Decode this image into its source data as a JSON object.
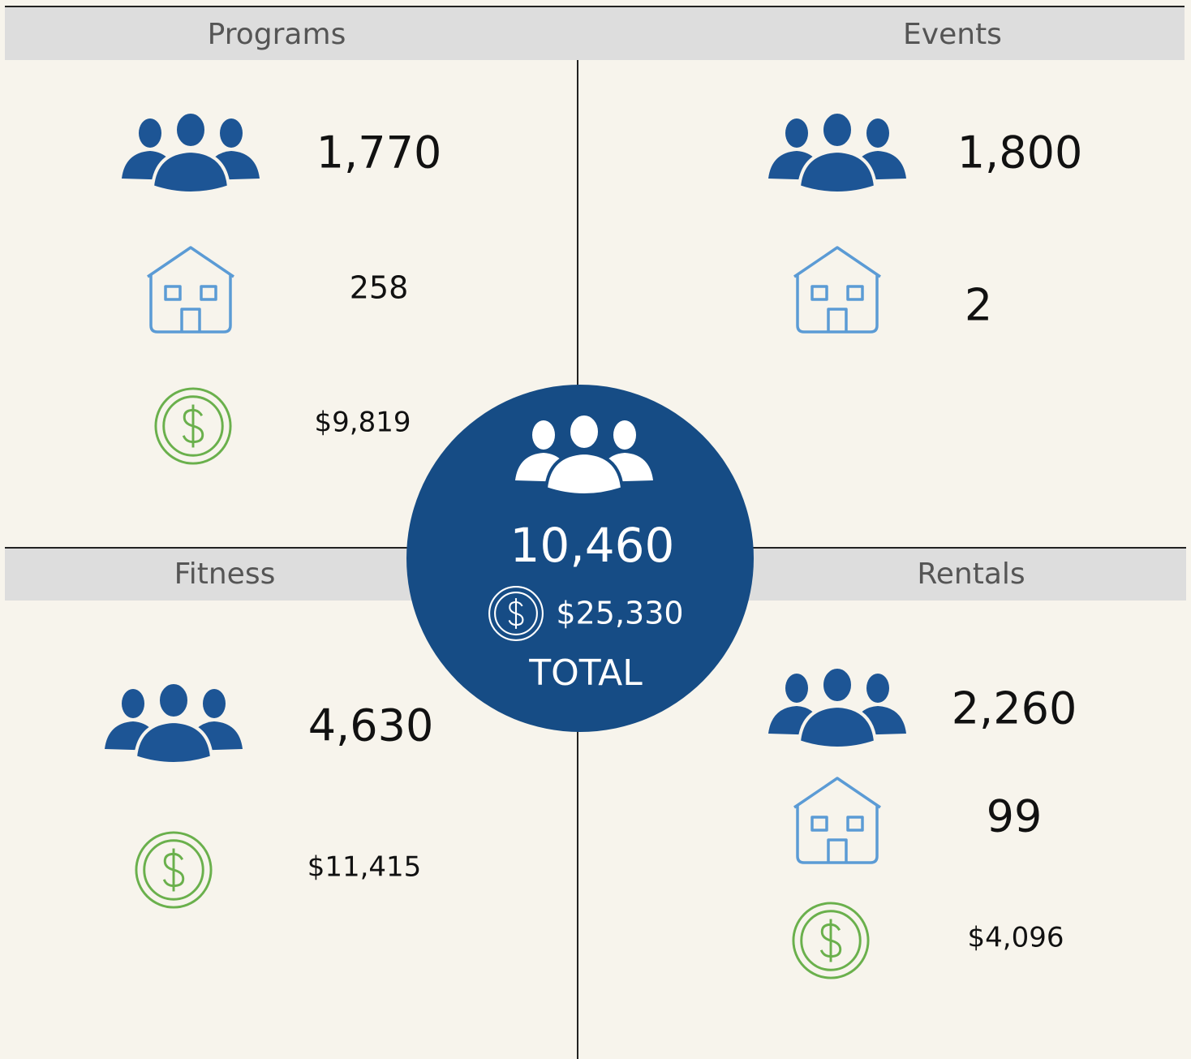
{
  "sections": [
    {
      "title": "Programs",
      "people": "1,770",
      "sites": "258",
      "revenue": "$9,819"
    },
    {
      "title": "Events",
      "people": "1,800",
      "sites": "2"
    },
    {
      "title": "Fitness",
      "people": "4,630",
      "revenue": "$11,415"
    },
    {
      "title": "Rentals",
      "people": "2,260",
      "sites": "99",
      "revenue": "$4,096"
    }
  ],
  "total": {
    "people": "10,460",
    "revenue": "$25,330",
    "label": "TOTAL"
  }
}
